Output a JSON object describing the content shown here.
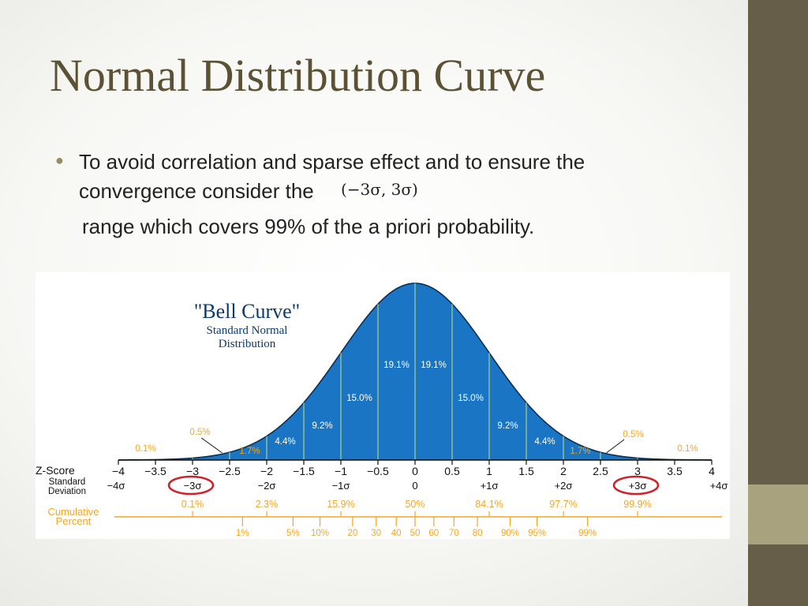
{
  "slide": {
    "title": "Normal Distribution Curve",
    "bullet": {
      "line1": "To avoid correlation and sparse effect and to ensure the",
      "line2": "convergence consider the",
      "formula": "(−3σ, 3σ)",
      "line3": "range which covers 99% of the a priori probability."
    }
  },
  "colors": {
    "side_band": "#675e49",
    "side_accent": "#a8a27e",
    "title": "#5b5235",
    "fill": "#1a75c4",
    "highlight": "#d0202a",
    "orange": "#f5a623"
  },
  "chart_data": {
    "type": "area",
    "title": "\"Bell Curve\"",
    "subtitle": [
      "Standard Normal",
      "Distribution"
    ],
    "xlim": [
      -4,
      4
    ],
    "segment_percents": [
      {
        "from": -3.5,
        "to": -3,
        "label": "0.1%"
      },
      {
        "from": -3,
        "to": -2.5,
        "label": "0.5%"
      },
      {
        "from": -2.5,
        "to": -2,
        "label": "1.7%"
      },
      {
        "from": -2,
        "to": -1.5,
        "label": "4.4%"
      },
      {
        "from": -1.5,
        "to": -1,
        "label": "9.2%"
      },
      {
        "from": -1,
        "to": -0.5,
        "label": "15.0%"
      },
      {
        "from": -0.5,
        "to": 0,
        "label": "19.1%"
      },
      {
        "from": 0,
        "to": 0.5,
        "label": "19.1%"
      },
      {
        "from": 0.5,
        "to": 1,
        "label": "15.0%"
      },
      {
        "from": 1,
        "to": 1.5,
        "label": "9.2%"
      },
      {
        "from": 1.5,
        "to": 2,
        "label": "4.4%"
      },
      {
        "from": 2,
        "to": 2.5,
        "label": "1.7%"
      },
      {
        "from": 2.5,
        "to": 3,
        "label": "0.5%"
      },
      {
        "from": 3,
        "to": 3.5,
        "label": "0.1%"
      }
    ],
    "z_score_label": "Z-Score",
    "z_ticks": [
      -4,
      -3.5,
      -3,
      -2.5,
      -2,
      -1.5,
      -1,
      -0.5,
      0,
      0.5,
      1,
      1.5,
      2,
      2.5,
      3,
      3.5,
      4
    ],
    "z_tick_labels": [
      "−4",
      "−3.5",
      "−3",
      "−2.5",
      "−2",
      "−1.5",
      "−1",
      "−0.5",
      "0",
      "0.5",
      "1",
      "1.5",
      "2",
      "2.5",
      "3",
      "3.5",
      "4"
    ],
    "sd_label": [
      "Standard",
      "Deviation"
    ],
    "sd_ticks": [
      {
        "z": -4,
        "label": "−4σ"
      },
      {
        "z": -3,
        "label": "−3σ",
        "circled": true
      },
      {
        "z": -2,
        "label": "−2σ"
      },
      {
        "z": -1,
        "label": "−1σ"
      },
      {
        "z": 0,
        "label": "0"
      },
      {
        "z": 1,
        "label": "+1σ"
      },
      {
        "z": 2,
        "label": "+2σ"
      },
      {
        "z": 3,
        "label": "+3σ",
        "circled": true
      },
      {
        "z": 4,
        "label": "+4σ"
      }
    ],
    "cumulative_label": [
      "Cumulative",
      "Percent"
    ],
    "cumulative_at_sd": [
      {
        "z": -3,
        "label": "0.1%"
      },
      {
        "z": -2,
        "label": "2.3%"
      },
      {
        "z": -1,
        "label": "15.9%"
      },
      {
        "z": 0,
        "label": "50%"
      },
      {
        "z": 1,
        "label": "84.1%"
      },
      {
        "z": 2,
        "label": "97.7%"
      },
      {
        "z": 3,
        "label": "99.9%"
      }
    ],
    "percentiles": [
      {
        "z": -2.326,
        "label": "1%"
      },
      {
        "z": -1.645,
        "label": "5%"
      },
      {
        "z": -1.2816,
        "label": "10%"
      },
      {
        "z": -0.8416,
        "label": "20"
      },
      {
        "z": -0.5244,
        "label": "30"
      },
      {
        "z": -0.2533,
        "label": "40"
      },
      {
        "z": 0,
        "label": "50"
      },
      {
        "z": 0.2533,
        "label": "60"
      },
      {
        "z": 0.5244,
        "label": "70"
      },
      {
        "z": 0.8416,
        "label": "80"
      },
      {
        "z": 1.2816,
        "label": "90%"
      },
      {
        "z": 1.645,
        "label": "95%"
      },
      {
        "z": 2.326,
        "label": "99%"
      }
    ]
  }
}
